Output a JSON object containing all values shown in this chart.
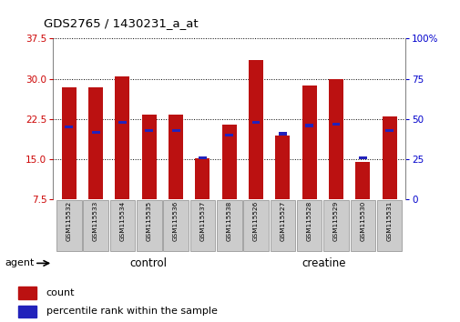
{
  "title": "GDS2765 / 1430231_a_at",
  "samples": [
    "GSM115532",
    "GSM115533",
    "GSM115534",
    "GSM115535",
    "GSM115536",
    "GSM115537",
    "GSM115538",
    "GSM115526",
    "GSM115527",
    "GSM115528",
    "GSM115529",
    "GSM115530",
    "GSM115531"
  ],
  "count_values": [
    28.5,
    28.5,
    30.5,
    23.3,
    23.3,
    15.2,
    21.5,
    33.5,
    19.5,
    28.8,
    30.0,
    14.5,
    23.0
  ],
  "percentile_values": [
    45,
    42,
    48,
    43,
    43,
    26,
    40,
    48,
    41,
    46,
    47,
    26,
    43
  ],
  "ylim_left": [
    7.5,
    37.5
  ],
  "ylim_right": [
    0,
    100
  ],
  "yticks_left": [
    7.5,
    15.0,
    22.5,
    30.0,
    37.5
  ],
  "yticks_right": [
    0,
    25,
    50,
    75,
    100
  ],
  "bar_color": "#BB1111",
  "blue_color": "#2222BB",
  "bar_width": 0.55,
  "control_samples": 7,
  "creatine_samples": 6,
  "control_label": "control",
  "creatine_label": "creatine",
  "agent_label": "agent",
  "legend_count": "count",
  "legend_percentile": "percentile rank within the sample",
  "tick_label_color_left": "#CC0000",
  "tick_label_color_right": "#0000CC",
  "bg_label_control": "#BBFFBB",
  "bg_label_creatine": "#44CC44",
  "xlabel_area_color": "#CCCCCC"
}
